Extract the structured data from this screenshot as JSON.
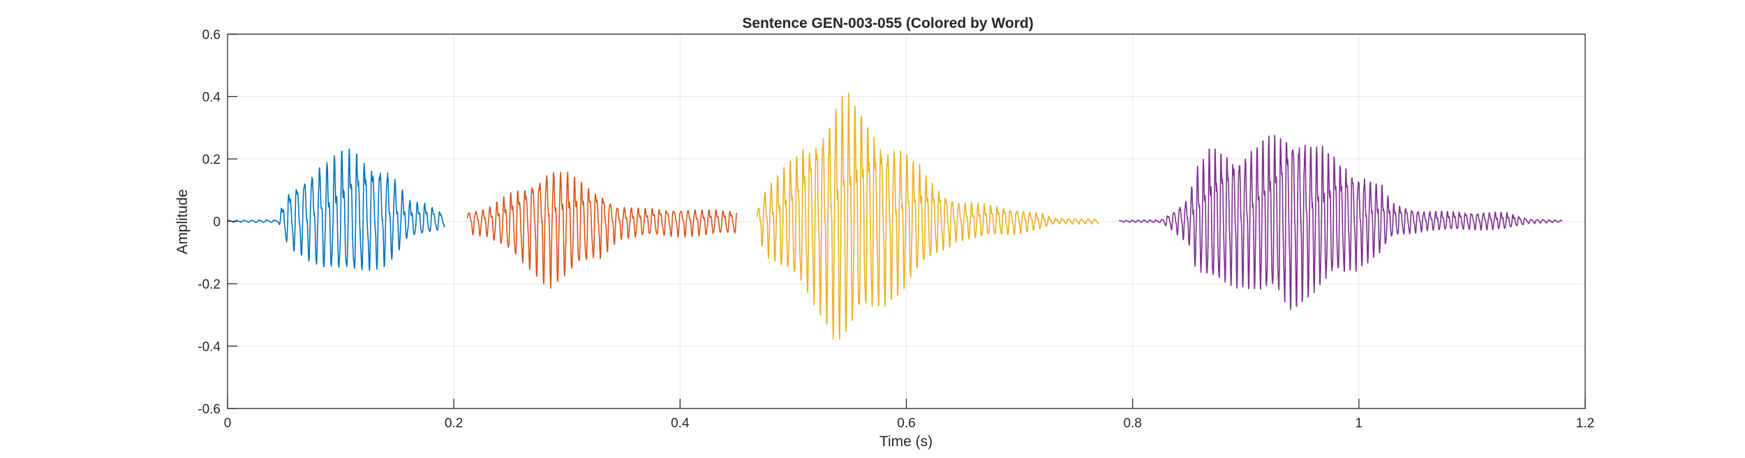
{
  "chart_data": {
    "type": "line",
    "title": "Sentence GEN-003-055 (Colored by Word)",
    "xlabel": "Time (s)",
    "ylabel": "Amplitude",
    "xlim": [
      0,
      1.2
    ],
    "ylim": [
      -0.6,
      0.6
    ],
    "x_ticks": [
      0,
      0.2,
      0.4,
      0.6,
      0.8,
      1,
      1.2
    ],
    "x_tick_labels": [
      "0",
      "0.2",
      "0.4",
      "0.6",
      "0.8",
      "1",
      "1.2"
    ],
    "y_ticks": [
      -0.6,
      -0.4,
      -0.2,
      0,
      0.2,
      0.4,
      0.6
    ],
    "y_tick_labels": [
      "-0.6",
      "-0.4",
      "-0.2",
      "0",
      "0.2",
      "0.4",
      "0.6"
    ],
    "grid": true,
    "legend": "none",
    "series": [
      {
        "color": "#0072BD",
        "start": 0.0,
        "end": 0.192,
        "freq": 150,
        "envelope": [
          [
            0.0,
            0.004
          ],
          [
            0.045,
            0.006
          ],
          [
            0.05,
            0.1
          ],
          [
            0.06,
            0.16
          ],
          [
            0.08,
            0.22
          ],
          [
            0.1,
            0.27
          ],
          [
            0.11,
            0.29
          ],
          [
            0.12,
            0.26
          ],
          [
            0.14,
            0.22
          ],
          [
            0.15,
            0.16
          ],
          [
            0.16,
            0.08
          ],
          [
            0.175,
            0.07
          ],
          [
            0.185,
            0.05
          ],
          [
            0.192,
            0.03
          ]
        ],
        "peak_max": 0.3,
        "peak_min": -0.2
      },
      {
        "color": "#D95319",
        "start": 0.212,
        "end": 0.45,
        "freq": 160,
        "envelope": [
          [
            0.212,
            0.04
          ],
          [
            0.23,
            0.05
          ],
          [
            0.25,
            0.11
          ],
          [
            0.27,
            0.17
          ],
          [
            0.285,
            0.21
          ],
          [
            0.3,
            0.19
          ],
          [
            0.315,
            0.15
          ],
          [
            0.33,
            0.12
          ],
          [
            0.345,
            0.06
          ],
          [
            0.37,
            0.05
          ],
          [
            0.4,
            0.05
          ],
          [
            0.43,
            0.045
          ],
          [
            0.45,
            0.04
          ]
        ],
        "peak_max": 0.22,
        "peak_min": -0.23
      },
      {
        "color": "#EDB120",
        "start": 0.468,
        "end": 0.77,
        "freq": 175,
        "envelope": [
          [
            0.468,
            0.05
          ],
          [
            0.475,
            0.13
          ],
          [
            0.49,
            0.2
          ],
          [
            0.51,
            0.3
          ],
          [
            0.53,
            0.42
          ],
          [
            0.54,
            0.5
          ],
          [
            0.55,
            0.48
          ],
          [
            0.57,
            0.38
          ],
          [
            0.6,
            0.27
          ],
          [
            0.625,
            0.15
          ],
          [
            0.645,
            0.08
          ],
          [
            0.7,
            0.05
          ],
          [
            0.72,
            0.03
          ],
          [
            0.73,
            0.012
          ],
          [
            0.77,
            0.01
          ]
        ],
        "peak_max": 0.51,
        "peak_min": -0.42
      },
      {
        "color": "#7E2F8E",
        "start": 0.788,
        "end": 1.18,
        "freq": 190,
        "envelope": [
          [
            0.788,
            0.004
          ],
          [
            0.825,
            0.006
          ],
          [
            0.835,
            0.04
          ],
          [
            0.85,
            0.1
          ],
          [
            0.855,
            0.2
          ],
          [
            0.87,
            0.29
          ],
          [
            0.9,
            0.28
          ],
          [
            0.92,
            0.33
          ],
          [
            0.94,
            0.39
          ],
          [
            0.96,
            0.31
          ],
          [
            0.99,
            0.23
          ],
          [
            1.02,
            0.14
          ],
          [
            1.03,
            0.07
          ],
          [
            1.06,
            0.04
          ],
          [
            1.13,
            0.035
          ],
          [
            1.15,
            0.01
          ],
          [
            1.18,
            0.004
          ]
        ],
        "peak_max": 0.41,
        "peak_min": -0.32
      }
    ]
  }
}
